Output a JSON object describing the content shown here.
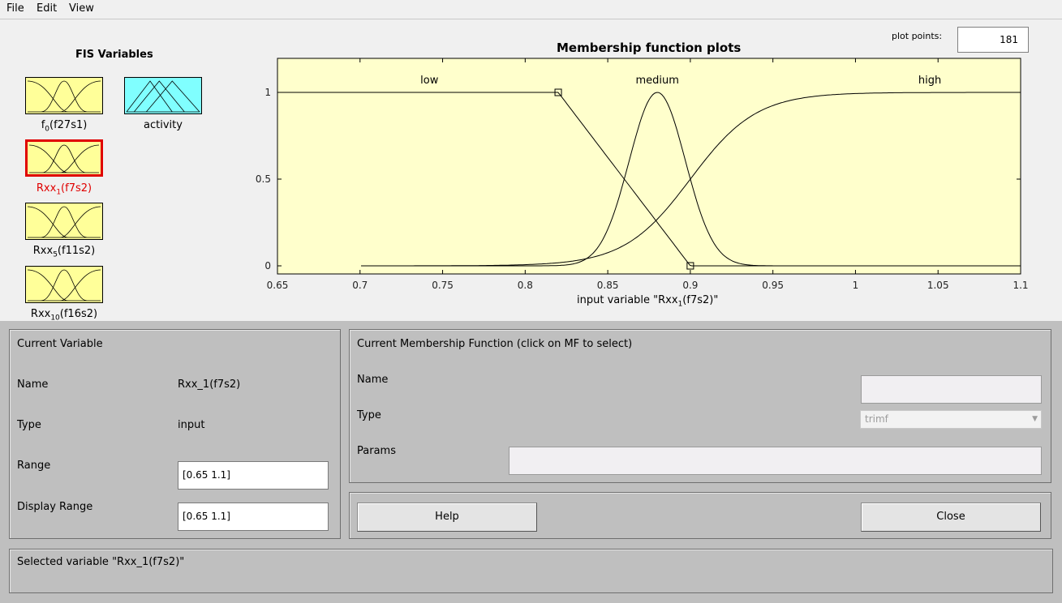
{
  "menu": [
    "File",
    "Edit",
    "View"
  ],
  "fis_panel": {
    "title": "FIS Variables",
    "variables": [
      {
        "base": "f",
        "sub": "0",
        "suffix": "(f27s1)",
        "color": "#ffff99",
        "selected": false
      },
      {
        "base": "activity",
        "sub": "",
        "suffix": "",
        "color": "#80ffff",
        "selected": false
      },
      {
        "base": "Rxx",
        "sub": "1",
        "suffix": "(f7s2)",
        "color": "#ffff99",
        "selected": true
      },
      {
        "base": "Rxx",
        "sub": "5",
        "suffix": "(f11s2)",
        "color": "#ffff99",
        "selected": false
      },
      {
        "base": "Rxx",
        "sub": "10",
        "suffix": "(f16s2)",
        "color": "#ffff99",
        "selected": false
      }
    ]
  },
  "plot_points": {
    "label": "plot points:",
    "value": "181"
  },
  "chart_data": {
    "type": "line",
    "title": "Membership function plots",
    "xlabel_base": "input variable \"Rxx",
    "xlabel_sub": "1",
    "xlabel_suffix": "(f7s2)\"",
    "xlim": [
      0.65,
      1.1
    ],
    "ylim": [
      0,
      1
    ],
    "xticks": [
      "0.65",
      "0.7",
      "0.75",
      "0.8",
      "0.85",
      "0.9",
      "0.95",
      "1",
      "1.05",
      "1.1"
    ],
    "yticks": [
      "0",
      "0.5",
      "1"
    ],
    "background": "#ffffcc",
    "series": [
      {
        "name": "low",
        "type": "trapmf",
        "params": [
          0.65,
          0.65,
          0.82,
          0.9
        ],
        "label_x": 0.742
      },
      {
        "name": "medium",
        "type": "gaussmf",
        "params": [
          0.017,
          0.88
        ],
        "label_x": 0.88
      },
      {
        "name": "high",
        "type": "sigmf",
        "params": [
          50,
          0.9
        ],
        "label_x": 1.045
      }
    ],
    "selected_points": [
      [
        0.82,
        1
      ],
      [
        0.9,
        0
      ]
    ]
  },
  "current_variable": {
    "title": "Current Variable",
    "name_label": "Name",
    "name_value": "Rxx_1(f7s2)",
    "type_label": "Type",
    "type_value": "input",
    "range_label": "Range",
    "range_value": "[0.65 1.1]",
    "display_range_label": "Display Range",
    "display_range_value": "[0.65 1.1]"
  },
  "current_mf": {
    "title": "Current Membership Function (click on MF to select)",
    "name_label": "Name",
    "name_value": "",
    "type_label": "Type",
    "type_value": "trimf",
    "params_label": "Params",
    "params_value": ""
  },
  "buttons": {
    "help": "Help",
    "close": "Close"
  },
  "status": "Selected variable \"Rxx_1(f7s2)\""
}
